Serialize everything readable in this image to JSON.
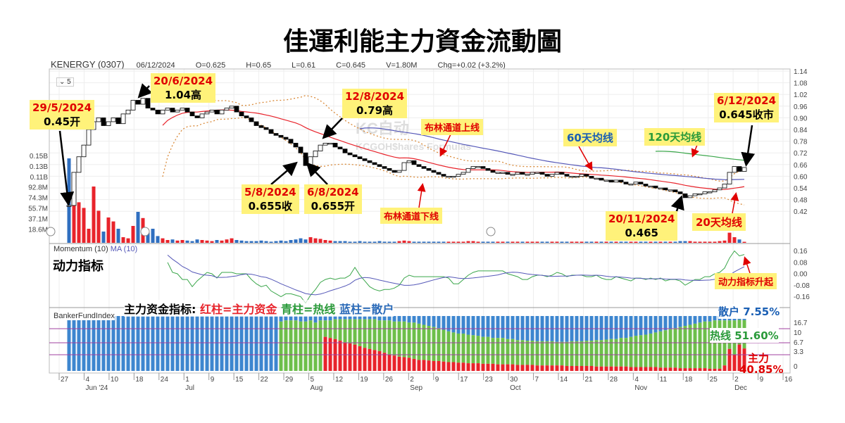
{
  "title": "佳運利能主力資金流動圖",
  "header": {
    "symbol": "KENERGY (0307)",
    "date": "06/12/2024",
    "open": "O=0.625",
    "high": "H=0.65",
    "low": "L=0.61",
    "close": "C=0.645",
    "volume": "V=1.80M",
    "change": "Chg=+0.02 (+3.2%)"
  },
  "period_select": "⌄ 5",
  "watermark": [
    "KC自动",
    "KCGOH$hares Formulas"
  ],
  "colors": {
    "up_volume": "#e8232b",
    "down_volume": "#2f6fc0",
    "ma20": "#e8232b",
    "ma60": "#5558b8",
    "ma120": "#3aa64a",
    "bollinger": "#d98a3a",
    "momentum": "#3aa64a",
    "momentum_ma": "#5558b8",
    "main_fund": "#e8232b",
    "hot_money": "#6dbf4a",
    "retail": "#3d86cf"
  },
  "panels": {
    "momentum_label": "Momentum (10)",
    "momentum_ma_label": "MA (10)",
    "momentum_cn": "动力指标",
    "banker_label": "BankerFundIndex",
    "banker_legend": {
      "prefix": "主力资金指标:",
      "red": "红柱=主力资金",
      "green": "青柱=热线",
      "blue": "蓝柱=散户"
    }
  },
  "annotations": {
    "a1": {
      "date": "29/5/2024",
      "text": "0.45开"
    },
    "a2": {
      "date": "20/6/2024",
      "text": "1.04高"
    },
    "a3": {
      "date": "12/8/2024",
      "text": "0.79高"
    },
    "a4": {
      "date": "5/8/2024",
      "text": "0.655收"
    },
    "a5": {
      "date": "6/8/2024",
      "text": "0.655开"
    },
    "a6": {
      "date": "6/12/2024",
      "text": "0.645收市"
    },
    "a7": {
      "date": "20/11/2024",
      "text": "0.465"
    },
    "boll_upper": "布林通道上线",
    "boll_lower": "布林通道下线",
    "ma60": "60天均线",
    "ma120": "120天均线",
    "ma20": "20天均线",
    "momentum_up": "动力指标升起",
    "retail_pct": "散户 7.55%",
    "hot_pct": "热线 51.60%",
    "main_label": "主力",
    "main_pct": "40.85%"
  },
  "chart_data": {
    "type": "candlestick",
    "price_ticks": [
      "1.14",
      "1.08",
      "1.02",
      "0.96",
      "0.90",
      "0.84",
      "0.78",
      "0.72",
      "0.66",
      "0.60",
      "0.54",
      "0.48",
      "0.42"
    ],
    "volume_ticks": [
      "0.15B",
      "0.13B",
      "0.11B",
      "92.8M",
      "74.3M",
      "55.7M",
      "37.1M",
      "18.6M"
    ],
    "momentum_ticks": [
      "0.16",
      "0.08",
      "0.00",
      "-0.08",
      "-0.16"
    ],
    "banker_ticks": [
      "16.7",
      "10",
      "6.7",
      "3.3",
      "0"
    ],
    "date_ticks": [
      "27",
      "4",
      "10",
      "18",
      "24",
      "1",
      "9",
      "15",
      "22",
      "29",
      "5",
      "12",
      "19",
      "26",
      "2",
      "9",
      "17",
      "23",
      "30",
      "7",
      "14",
      "21",
      "28",
      "4",
      "11",
      "18",
      "25",
      "2",
      "9",
      "16"
    ],
    "month_labels": [
      {
        "at": 1,
        "label": "Jun '24"
      },
      {
        "at": 5,
        "label": "Jul"
      },
      {
        "at": 10,
        "label": "Aug"
      },
      {
        "at": 14,
        "label": "Sep"
      },
      {
        "at": 18,
        "label": "Oct"
      },
      {
        "at": 23,
        "label": "Nov"
      },
      {
        "at": 27,
        "label": "Dec"
      }
    ],
    "close": [
      0.45,
      0.62,
      0.7,
      0.76,
      0.84,
      0.88,
      0.9,
      0.86,
      0.88,
      0.9,
      0.87,
      0.92,
      0.94,
      0.99,
      0.97,
      1.0,
      0.95,
      0.94,
      0.92,
      0.94,
      0.95,
      0.93,
      0.94,
      0.95,
      0.93,
      0.91,
      0.9,
      0.92,
      0.93,
      0.94,
      0.92,
      0.94,
      0.95,
      0.96,
      0.93,
      0.91,
      0.9,
      0.88,
      0.86,
      0.85,
      0.84,
      0.82,
      0.81,
      0.8,
      0.79,
      0.77,
      0.75,
      0.72,
      0.655,
      0.7,
      0.73,
      0.76,
      0.77,
      0.77,
      0.75,
      0.74,
      0.72,
      0.71,
      0.7,
      0.69,
      0.68,
      0.67,
      0.66,
      0.65,
      0.64,
      0.63,
      0.62,
      0.63,
      0.67,
      0.68,
      0.66,
      0.65,
      0.64,
      0.63,
      0.62,
      0.61,
      0.6,
      0.6,
      0.6,
      0.61,
      0.62,
      0.64,
      0.65,
      0.65,
      0.64,
      0.63,
      0.62,
      0.62,
      0.62,
      0.61,
      0.61,
      0.62,
      0.61,
      0.61,
      0.62,
      0.62,
      0.61,
      0.6,
      0.61,
      0.62,
      0.61,
      0.6,
      0.6,
      0.6,
      0.61,
      0.6,
      0.59,
      0.59,
      0.58,
      0.58,
      0.57,
      0.58,
      0.57,
      0.56,
      0.56,
      0.57,
      0.56,
      0.55,
      0.55,
      0.54,
      0.54,
      0.53,
      0.53,
      0.52,
      0.51,
      0.49,
      0.5,
      0.51,
      0.51,
      0.52,
      0.52,
      0.53,
      0.54,
      0.56,
      0.62,
      0.65,
      0.625,
      0.645
    ],
    "volume_m": [
      150,
      88,
      72,
      62,
      25,
      100,
      57,
      20,
      45,
      38,
      25,
      10,
      8,
      30,
      55,
      44,
      18,
      25,
      12,
      8,
      5,
      6,
      4,
      5,
      4,
      3,
      6,
      5,
      4,
      3,
      5,
      4,
      6,
      8,
      5,
      4,
      3,
      3,
      3,
      4,
      3,
      2,
      3,
      4,
      3,
      5,
      6,
      8,
      6,
      10,
      8,
      7,
      5,
      4,
      3,
      3,
      3,
      2,
      2,
      3,
      2,
      2,
      2,
      3,
      2,
      2,
      2,
      3,
      4,
      3,
      2,
      2,
      2,
      2,
      2,
      2,
      2,
      2,
      2,
      2,
      2,
      3,
      3,
      2,
      2,
      2,
      2,
      2,
      2,
      2,
      2,
      2,
      2,
      2,
      2,
      2,
      2,
      2,
      2,
      2,
      2,
      2,
      2,
      2,
      2,
      2,
      2,
      2,
      2,
      2,
      2,
      2,
      2,
      2,
      2,
      2,
      2,
      2,
      2,
      2,
      2,
      2,
      2,
      2,
      3,
      3,
      3,
      2,
      2,
      2,
      2,
      2,
      3,
      4,
      18,
      10,
      6,
      1.8
    ],
    "main_fund_pct": [
      0,
      0,
      0,
      0,
      0,
      0,
      0,
      0,
      0,
      0,
      0,
      0,
      0,
      0,
      0,
      0,
      0,
      0,
      0,
      0,
      0,
      0,
      0,
      0,
      0,
      0,
      0,
      0,
      0,
      0,
      0,
      0,
      0,
      0,
      0,
      0,
      0,
      0,
      0,
      0,
      0,
      0,
      0,
      0,
      0,
      0,
      0,
      0,
      0,
      0,
      0,
      0,
      62,
      60,
      58,
      55,
      52,
      50,
      48,
      45,
      42,
      40,
      38,
      36,
      33,
      30,
      28,
      26,
      25,
      24,
      22,
      20,
      20,
      19,
      18,
      18,
      17,
      16,
      16,
      15,
      15,
      14,
      14,
      14,
      13,
      13,
      13,
      12,
      12,
      12,
      12,
      11,
      11,
      11,
      11,
      10,
      10,
      10,
      10,
      10,
      10,
      9,
      9,
      9,
      9,
      9,
      9,
      8,
      8,
      8,
      8,
      8,
      8,
      8,
      7,
      7,
      7,
      7,
      7,
      7,
      6,
      6,
      6,
      6,
      5,
      5,
      5,
      5,
      5,
      5,
      4,
      4,
      4,
      10,
      40,
      30,
      48,
      40.85
    ],
    "retail_pct": [
      100,
      100,
      100,
      100,
      100,
      100,
      100,
      100,
      100,
      100,
      100,
      100,
      100,
      100,
      100,
      100,
      100,
      100,
      100,
      100,
      100,
      100,
      100,
      100,
      100,
      100,
      100,
      100,
      100,
      100,
      100,
      100,
      100,
      100,
      100,
      100,
      100,
      100,
      100,
      100,
      100,
      100,
      100,
      10,
      8,
      8,
      8,
      10,
      10,
      8,
      12,
      8,
      8,
      8,
      6,
      6,
      6,
      6,
      6,
      6,
      6,
      6,
      6,
      8,
      8,
      8,
      10,
      10,
      10,
      12,
      12,
      14,
      16,
      18,
      20,
      22,
      25,
      28,
      30,
      32,
      32,
      34,
      35,
      36,
      38,
      38,
      40,
      40,
      40,
      42,
      42,
      44,
      44,
      45,
      45,
      46,
      46,
      46,
      46,
      47,
      47,
      47,
      46,
      46,
      46,
      45,
      45,
      44,
      44,
      43,
      42,
      42,
      40,
      40,
      38,
      36,
      35,
      34,
      32,
      30,
      28,
      26,
      24,
      22,
      20,
      18,
      16,
      14,
      12,
      10,
      10,
      8,
      8,
      8,
      8,
      8,
      7,
      7.55
    ]
  }
}
